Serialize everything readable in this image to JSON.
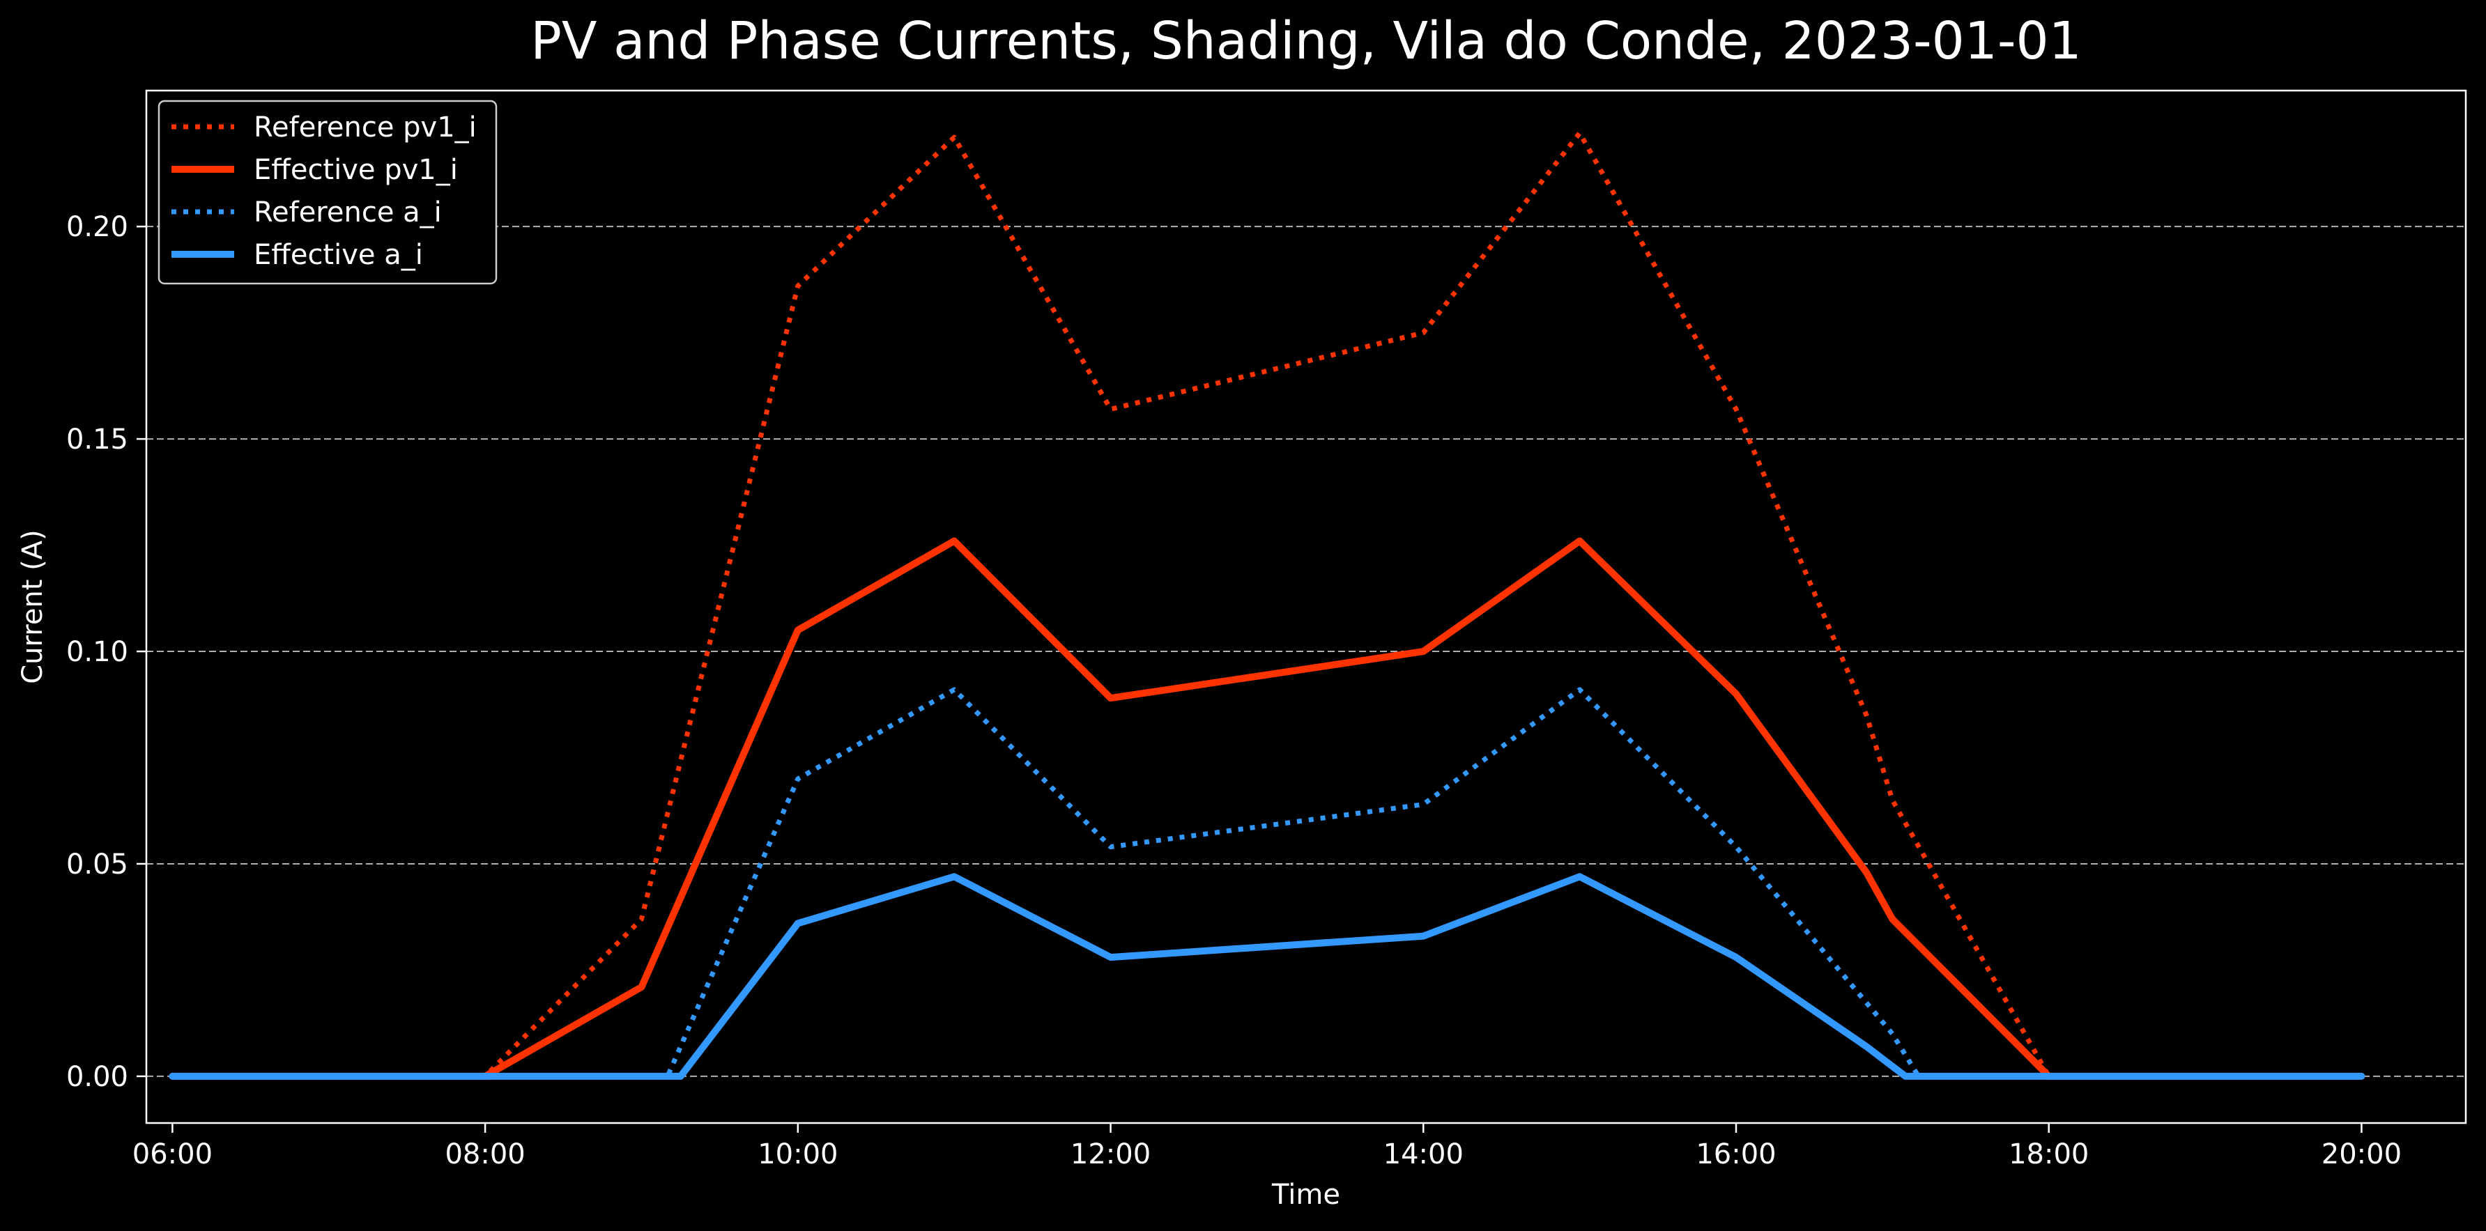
{
  "chart_data": {
    "type": "line",
    "title": "PV and Phase Currents, Shading, Vila do Conde, 2023-01-01",
    "xlabel": "Time",
    "ylabel": "Current (A)",
    "x_ticks": [
      "06:00",
      "08:00",
      "10:00",
      "12:00",
      "14:00",
      "16:00",
      "18:00",
      "20:00"
    ],
    "y_ticks": [
      "0.00",
      "0.05",
      "0.10",
      "0.15",
      "0.20"
    ],
    "xlim": [
      "05:50",
      "20:40"
    ],
    "ylim": [
      -0.011,
      0.232
    ],
    "grid": "horizontal dashed",
    "legend_position": "upper-left",
    "background": "#000000",
    "series": [
      {
        "name": "Reference pv1_i",
        "style": "dotted",
        "color": "#ff3300",
        "points": [
          [
            "06:00",
            0
          ],
          [
            "08:00",
            0
          ],
          [
            "09:00",
            0.037
          ],
          [
            "10:00",
            0.186
          ],
          [
            "11:00",
            0.221
          ],
          [
            "12:00",
            0.157
          ],
          [
            "14:00",
            0.175
          ],
          [
            "15:00",
            0.222
          ],
          [
            "16:00",
            0.157
          ],
          [
            "16:50",
            0.085
          ],
          [
            "17:00",
            0.065
          ],
          [
            "18:00",
            0
          ],
          [
            "20:00",
            0
          ]
        ]
      },
      {
        "name": "Effective pv1_i",
        "style": "solid",
        "color": "#ff3300",
        "points": [
          [
            "06:00",
            0
          ],
          [
            "08:00",
            0
          ],
          [
            "09:00",
            0.021
          ],
          [
            "10:00",
            0.105
          ],
          [
            "11:00",
            0.126
          ],
          [
            "12:00",
            0.089
          ],
          [
            "14:00",
            0.1
          ],
          [
            "15:00",
            0.126
          ],
          [
            "16:00",
            0.09
          ],
          [
            "16:50",
            0.048
          ],
          [
            "17:00",
            0.037
          ],
          [
            "18:00",
            0
          ],
          [
            "20:00",
            0
          ]
        ]
      },
      {
        "name": "Reference a_i",
        "style": "dotted",
        "color": "#3399ff",
        "points": [
          [
            "06:00",
            0
          ],
          [
            "09:10",
            0
          ],
          [
            "10:00",
            0.07
          ],
          [
            "11:00",
            0.091
          ],
          [
            "12:00",
            0.054
          ],
          [
            "14:00",
            0.064
          ],
          [
            "15:00",
            0.091
          ],
          [
            "16:00",
            0.054
          ],
          [
            "17:00",
            0.01
          ],
          [
            "17:10",
            0
          ],
          [
            "20:00",
            0
          ]
        ]
      },
      {
        "name": "Effective a_i",
        "style": "solid",
        "color": "#3399ff",
        "points": [
          [
            "06:00",
            0
          ],
          [
            "09:15",
            0
          ],
          [
            "10:00",
            0.036
          ],
          [
            "11:00",
            0.047
          ],
          [
            "12:00",
            0.028
          ],
          [
            "14:00",
            0.033
          ],
          [
            "15:00",
            0.047
          ],
          [
            "16:00",
            0.028
          ],
          [
            "16:50",
            0.007
          ],
          [
            "17:05",
            0
          ],
          [
            "20:00",
            0
          ]
        ]
      }
    ]
  }
}
